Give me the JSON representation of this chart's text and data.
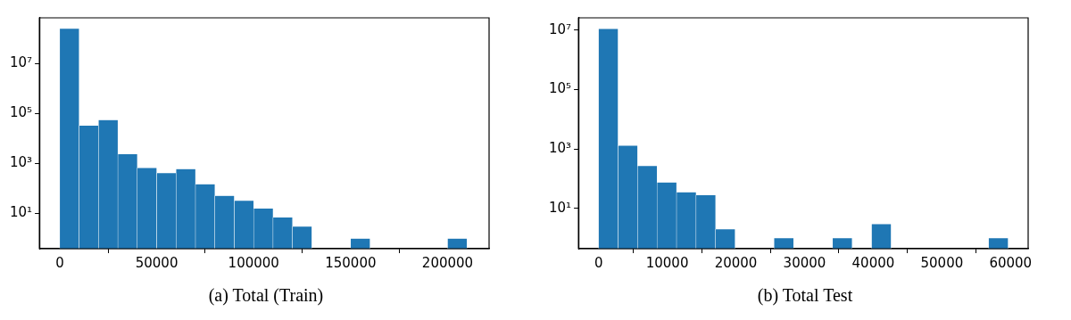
{
  "chart_data": [
    {
      "type": "histogram",
      "title": "(a) Total (Train)",
      "color": "#1f77b4",
      "log": true,
      "grid": false,
      "bins": [
        0,
        10000,
        20000,
        30000,
        40000,
        50000,
        60000,
        70000,
        80000,
        90000,
        100000,
        110000,
        120000,
        130000,
        140000,
        150000,
        160000,
        170000,
        180000,
        190000,
        200000,
        210000
      ],
      "values": [
        250000000,
        33000,
        55000,
        2400,
        670,
        420,
        600,
        150,
        51,
        33,
        16,
        7,
        3,
        null,
        null,
        1,
        null,
        null,
        null,
        null,
        1
      ],
      "xlim": [
        -10500,
        221400
      ],
      "xticks": [
        0,
        50000,
        100000,
        150000,
        200000
      ],
      "ylim": [
        0.39,
        680000000
      ],
      "yticks": [
        {
          "value": 10,
          "label": "10¹"
        },
        {
          "value": 1000,
          "label": "10³"
        },
        {
          "value": 100000,
          "label": "10⁵"
        },
        {
          "value": 10000000,
          "label": "10⁷"
        }
      ]
    },
    {
      "type": "histogram",
      "title": "(b) Total Test",
      "color": "#1f77b4",
      "log": true,
      "grid": false,
      "bins": [
        0,
        2840,
        5680,
        8520,
        11360,
        14200,
        17040,
        19880,
        22720,
        25560,
        28400,
        31240,
        34080,
        36920,
        39760,
        42600,
        45440,
        48280,
        51120,
        53960,
        56800,
        59640
      ],
      "values": [
        11000000,
        1300,
        270,
        75,
        35,
        28,
        2,
        null,
        null,
        1,
        null,
        null,
        1,
        null,
        3,
        null,
        null,
        null,
        null,
        null,
        1
      ],
      "xlim": [
        -2930,
        62560
      ],
      "xticks": [
        0,
        10000,
        20000,
        30000,
        40000,
        50000,
        60000
      ],
      "ylim": [
        0.44,
        26000000
      ],
      "yticks": [
        {
          "value": 10,
          "label": "10¹"
        },
        {
          "value": 1000,
          "label": "10³"
        },
        {
          "value": 100000,
          "label": "10⁵"
        },
        {
          "value": 10000000,
          "label": "10⁷"
        }
      ]
    }
  ]
}
